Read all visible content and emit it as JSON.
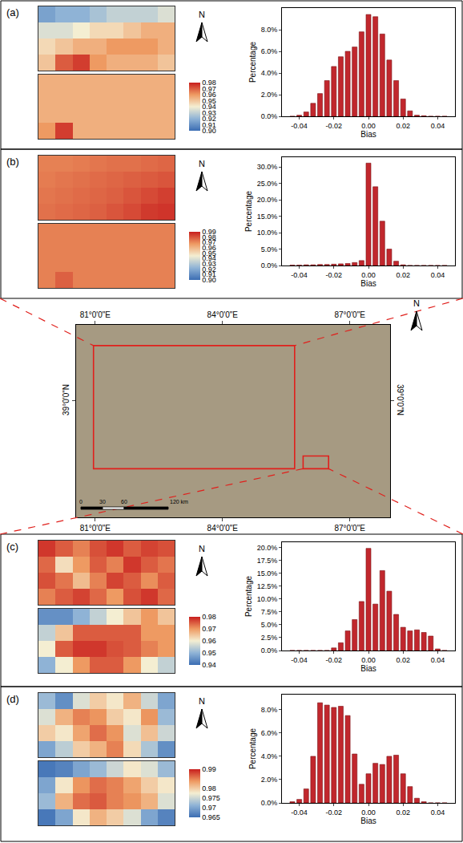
{
  "chart_data": [
    {
      "type": "histogram",
      "label": "(a)",
      "north": "N",
      "maps": {
        "type": "heatmap",
        "top": [
          [
            0.915,
            0.92,
            0.92,
            0.925,
            0.93,
            0.93,
            0.93,
            0.935
          ],
          [
            0.935,
            0.935,
            0.94,
            0.945,
            0.945,
            0.95,
            0.955,
            0.955
          ],
          [
            0.945,
            0.95,
            0.955,
            0.955,
            0.96,
            0.96,
            0.96,
            0.955
          ],
          [
            0.95,
            0.97,
            0.975,
            0.96,
            0.955,
            0.955,
            0.955,
            0.95
          ]
        ],
        "bottom": [
          [
            0.955,
            0.955,
            0.955,
            0.955,
            0.955,
            0.955,
            0.955,
            0.955
          ],
          [
            0.955,
            0.955,
            0.955,
            0.955,
            0.955,
            0.955,
            0.955,
            0.955
          ],
          [
            0.955,
            0.955,
            0.955,
            0.955,
            0.955,
            0.955,
            0.955,
            0.955
          ],
          [
            0.96,
            0.975,
            0.955,
            0.955,
            0.955,
            0.955,
            0.955,
            0.955
          ]
        ],
        "colorbar": {
          "range": [
            0.9,
            0.98
          ],
          "ticks": [
            {
              "value": 0.9,
              "label": "0.90"
            },
            0.91,
            0.92,
            0.93,
            0.94,
            0.95,
            0.96,
            0.97,
            0.98
          ]
        }
      },
      "bins": [
        -0.046,
        -0.042,
        -0.038,
        -0.034,
        -0.03,
        -0.026,
        -0.022,
        -0.018,
        -0.014,
        -0.01,
        -0.006,
        -0.002,
        0.002,
        0.006,
        0.01,
        0.014,
        0.018,
        0.022,
        0.026,
        0.03,
        0.034,
        0.038,
        0.042,
        0.046
      ],
      "values": [
        0,
        0.1,
        0.4,
        1.2,
        2.1,
        3.3,
        4.6,
        5.5,
        6.0,
        6.4,
        7.8,
        9.4,
        9.2,
        7.6,
        5.2,
        3.3,
        1.6,
        0.5,
        0.1,
        0.05,
        0,
        0,
        0
      ],
      "color": "#c1272d",
      "xlabel": "Bias",
      "ylabel": "Percentage",
      "xlim": [
        -0.05,
        0.05
      ],
      "xticks": [
        -0.04,
        -0.02,
        {
          "value": 0,
          "label": "0.00"
        },
        0.02,
        0.04
      ],
      "ylim": [
        0,
        10
      ],
      "yticks": [
        {
          "value": 0,
          "label": "0.0%"
        },
        {
          "value": 2,
          "label": "2.0%"
        },
        {
          "value": 4,
          "label": "4.0%"
        },
        {
          "value": 6,
          "label": "6.0%"
        },
        {
          "value": 8,
          "label": "8.0%"
        }
      ]
    },
    {
      "type": "histogram",
      "label": "(b)",
      "north": "N",
      "maps": {
        "type": "heatmap",
        "top": [
          [
            0.972,
            0.972,
            0.973,
            0.974,
            0.975,
            0.975,
            0.976,
            0.977
          ],
          [
            0.973,
            0.974,
            0.975,
            0.976,
            0.977,
            0.978,
            0.979,
            0.98
          ],
          [
            0.974,
            0.975,
            0.976,
            0.977,
            0.978,
            0.98,
            0.982,
            0.984
          ],
          [
            0.975,
            0.976,
            0.977,
            0.978,
            0.98,
            0.982,
            0.985,
            0.986
          ]
        ],
        "bottom": [
          [
            0.972,
            0.972,
            0.972,
            0.972,
            0.972,
            0.972,
            0.972,
            0.972
          ],
          [
            0.972,
            0.972,
            0.972,
            0.972,
            0.972,
            0.972,
            0.972,
            0.972
          ],
          [
            0.972,
            0.972,
            0.972,
            0.972,
            0.972,
            0.972,
            0.972,
            0.972
          ],
          [
            0.972,
            0.978,
            0.972,
            0.972,
            0.972,
            0.972,
            0.972,
            0.972
          ]
        ],
        "colorbar": {
          "range": [
            0.9,
            0.99
          ],
          "ticks": [
            {
              "value": 0.9,
              "label": "0.90"
            },
            0.91,
            0.92,
            0.93,
            0.94,
            0.95,
            0.96,
            0.97,
            0.98,
            0.99
          ]
        }
      },
      "bins": [
        -0.046,
        -0.042,
        -0.038,
        -0.034,
        -0.03,
        -0.026,
        -0.022,
        -0.018,
        -0.014,
        -0.01,
        -0.006,
        -0.002,
        0.002,
        0.006,
        0.01,
        0.014,
        0.018,
        0.022,
        0.026,
        0.03,
        0.034,
        0.038,
        0.042,
        0.046
      ],
      "values": [
        0.1,
        0.1,
        0.2,
        0.2,
        0.3,
        0.3,
        0.4,
        0.5,
        0.6,
        0.9,
        1.5,
        31.2,
        24.0,
        13.5,
        5.0,
        1.3,
        0.2,
        0,
        0,
        0,
        0,
        0,
        0
      ],
      "color": "#c1272d",
      "xlabel": "Bias",
      "ylabel": "Percentage",
      "xlim": [
        -0.05,
        0.05
      ],
      "xticks": [
        -0.04,
        -0.02,
        {
          "value": 0,
          "label": "0.00"
        },
        0.02,
        0.04
      ],
      "ylim": [
        0,
        33
      ],
      "yticks": [
        {
          "value": 0,
          "label": "0.0%"
        },
        {
          "value": 5,
          "label": "5.0%"
        },
        {
          "value": 10,
          "label": "10.0%"
        },
        {
          "value": 15,
          "label": "15.0%"
        },
        {
          "value": 20,
          "label": "20.0%"
        },
        {
          "value": 25,
          "label": "25.0%"
        },
        {
          "value": 30,
          "label": "30.0%"
        }
      ]
    },
    {
      "type": "map",
      "north": "N",
      "color": "#a69a82",
      "xlim": [
        80.55,
        87.95
      ],
      "xticks": [
        {
          "value": 81,
          "label": "81°0'0\"E"
        },
        {
          "value": 84,
          "label": "84°0'0\"E"
        },
        {
          "value": 87,
          "label": "87°0'0\"E"
        }
      ],
      "ylim": [
        36.25,
        40.8
      ],
      "yticks": [
        {
          "value": 39,
          "label": "39°0'0\"N"
        }
      ],
      "regions": [
        {
          "x": [
            80.96,
            85.7
          ],
          "y": [
            37.4,
            40.31
          ]
        },
        {
          "x": [
            85.9,
            86.5
          ],
          "y": [
            37.4,
            37.7
          ]
        }
      ],
      "region_color": "#e0201c",
      "scale_bar": [
        "0",
        "30",
        "60",
        "120 km"
      ]
    },
    {
      "type": "histogram",
      "label": "(c)",
      "north": "N",
      "maps": {
        "type": "heatmap",
        "top": [
          [
            0.978,
            0.975,
            0.972,
            0.976,
            0.978,
            0.975,
            0.977,
            0.976
          ],
          [
            0.974,
            0.962,
            0.97,
            0.975,
            0.972,
            0.978,
            0.975,
            0.973
          ],
          [
            0.976,
            0.973,
            0.966,
            0.972,
            0.977,
            0.975,
            0.971,
            0.975
          ],
          [
            0.972,
            0.975,
            0.977,
            0.974,
            0.97,
            0.976,
            0.978,
            0.974
          ]
        ],
        "bottom": [
          [
            0.945,
            0.945,
            0.95,
            0.955,
            0.96,
            0.965,
            0.97,
            0.965
          ],
          [
            0.955,
            0.965,
            0.975,
            0.975,
            0.975,
            0.975,
            0.97,
            0.97
          ],
          [
            0.96,
            0.975,
            0.978,
            0.978,
            0.976,
            0.975,
            0.972,
            0.97
          ],
          [
            0.95,
            0.96,
            0.97,
            0.975,
            0.975,
            0.97,
            0.96,
            0.955
          ]
        ],
        "colorbar": {
          "range": [
            0.94,
            0.98
          ],
          "ticks": [
            0.94,
            0.95,
            0.96,
            0.97,
            0.98
          ]
        }
      },
      "bins": [
        -0.046,
        -0.042,
        -0.038,
        -0.034,
        -0.03,
        -0.026,
        -0.022,
        -0.018,
        -0.014,
        -0.01,
        -0.006,
        -0.002,
        0.002,
        0.006,
        0.01,
        0.014,
        0.018,
        0.022,
        0.026,
        0.03,
        0.034,
        0.038,
        0.042,
        0.046
      ],
      "values": [
        0,
        0,
        0,
        0,
        0,
        0,
        0.5,
        1.5,
        3.8,
        6.0,
        9.5,
        19.8,
        9.0,
        15.5,
        11.5,
        7.0,
        4.5,
        3.8,
        4.0,
        3.5,
        2.8,
        0.3,
        0
      ],
      "color": "#c1272d",
      "xlabel": "Bias",
      "ylabel": "Percentage",
      "xlim": [
        -0.05,
        0.05
      ],
      "xticks": [
        -0.04,
        -0.02,
        {
          "value": 0,
          "label": "0.00"
        },
        0.02,
        0.04
      ],
      "ylim": [
        0,
        21
      ],
      "yticks": [
        {
          "value": 0,
          "label": "0.0%"
        },
        {
          "value": 2.5,
          "label": "2.5%"
        },
        {
          "value": 5,
          "label": "5.0%"
        },
        {
          "value": 7.5,
          "label": "7.5%"
        },
        {
          "value": 10,
          "label": "10.0%"
        },
        {
          "value": 12.5,
          "label": "12.5%"
        },
        {
          "value": 15,
          "label": "15.0%"
        },
        {
          "value": 17.5,
          "label": "17.5%"
        },
        {
          "value": 20,
          "label": "20.0%"
        }
      ]
    },
    {
      "type": "histogram",
      "label": "(d)",
      "north": "N",
      "maps": {
        "type": "heatmap",
        "top": [
          [
            0.972,
            0.968,
            0.976,
            0.98,
            0.978,
            0.982,
            0.975,
            0.97
          ],
          [
            0.976,
            0.982,
            0.985,
            0.984,
            0.98,
            0.978,
            0.984,
            0.972
          ],
          [
            0.98,
            0.978,
            0.983,
            0.986,
            0.984,
            0.976,
            0.981,
            0.975
          ],
          [
            0.97,
            0.974,
            0.98,
            0.982,
            0.985,
            0.979,
            0.973,
            0.968
          ]
        ],
        "bottom": [
          [
            0.966,
            0.967,
            0.97,
            0.972,
            0.975,
            0.978,
            0.976,
            0.972
          ],
          [
            0.97,
            0.978,
            0.984,
            0.986,
            0.985,
            0.983,
            0.98,
            0.978
          ],
          [
            0.972,
            0.982,
            0.986,
            0.987,
            0.985,
            0.984,
            0.982,
            0.976
          ],
          [
            0.966,
            0.97,
            0.978,
            0.982,
            0.98,
            0.976,
            0.97,
            0.967
          ]
        ],
        "colorbar": {
          "range": [
            0.965,
            0.99
          ],
          "ticks": [
            0.965,
            0.97,
            0.975,
            0.98,
            0.99
          ]
        }
      },
      "bins": [
        -0.046,
        -0.042,
        -0.038,
        -0.034,
        -0.03,
        -0.026,
        -0.022,
        -0.018,
        -0.014,
        -0.01,
        -0.006,
        -0.002,
        0.002,
        0.006,
        0.01,
        0.014,
        0.018,
        0.022,
        0.026,
        0.03,
        0.034,
        0.038,
        0.042,
        0.046
      ],
      "values": [
        0.1,
        0.3,
        1.2,
        4.0,
        8.6,
        8.4,
        8.2,
        8.3,
        7.5,
        4.2,
        1.6,
        2.5,
        3.4,
        3.3,
        4.0,
        4.1,
        2.5,
        1.4,
        0.4,
        0.1,
        0,
        0,
        0
      ],
      "color": "#c1272d",
      "xlabel": "Bias",
      "ylabel": "Percentage",
      "xlim": [
        -0.05,
        0.05
      ],
      "xticks": [
        -0.04,
        -0.02,
        {
          "value": 0,
          "label": "0.00"
        },
        0.02,
        0.04
      ],
      "ylim": [
        0,
        9.3
      ],
      "yticks": [
        {
          "value": 0,
          "label": "0.0%"
        },
        {
          "value": 2,
          "label": "2.0%"
        },
        {
          "value": 4,
          "label": "4.0%"
        },
        {
          "value": 6,
          "label": "6.0%"
        },
        {
          "value": 8,
          "label": "8.0%"
        }
      ]
    }
  ]
}
